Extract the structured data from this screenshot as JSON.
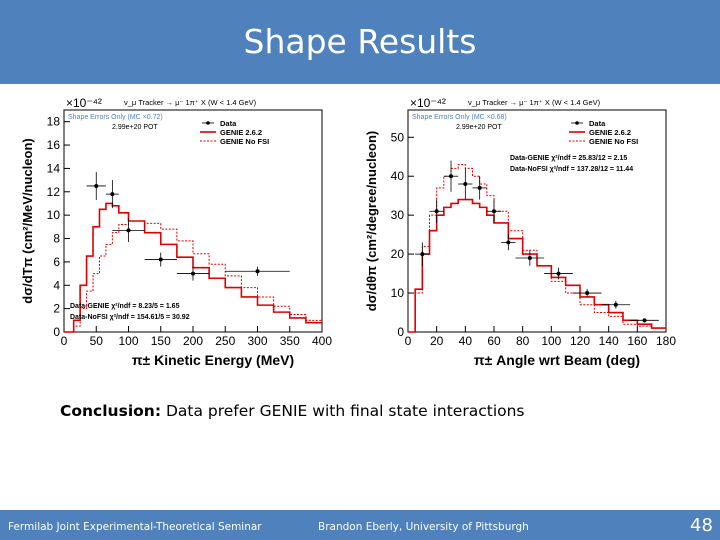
{
  "slide": {
    "title": "Shape Results",
    "conclusion_label": "Conclusion:",
    "conclusion_text": "Data prefer GENIE with final state interactions",
    "footer_left": "Fermilab Joint Experimental-Theoretical Seminar",
    "footer_center": "Brandon Eberly, University of Pittsburgh",
    "page_number": "48"
  },
  "colors": {
    "accent": "#4f81bd",
    "genie": "#e00000",
    "data": "#000000"
  },
  "chart_data": [
    {
      "type": "line",
      "title": "ν_μ Tracker → μ⁻ 1π⁺ X (W < 1.4 GeV)",
      "shape_note": "Shape Errors Only (MC ×0.72)",
      "pot": "2.99e+20 POT",
      "multiplier": "×10⁻⁴²",
      "xlabel": "π± Kinetic Energy (MeV)",
      "ylabel": "dσ/dTπ (cm²/MeV/nucleon)",
      "xlim": [
        0,
        400
      ],
      "ylim": [
        0,
        19
      ],
      "xticks": [
        "0",
        "50",
        "100",
        "150",
        "200",
        "250",
        "300",
        "350",
        "400"
      ],
      "yticks": [
        "0",
        "2",
        "4",
        "6",
        "8",
        "10",
        "12",
        "14",
        "16",
        "18"
      ],
      "legend": [
        "Data",
        "GENIE 2.6.2",
        "GENIE No FSI"
      ],
      "chi2": [
        "Data-GENIE  χ²/ndf = 8.23/5 = 1.65",
        "Data-NoFSI  χ²/ndf = 154.61/5 = 30.92"
      ],
      "data": {
        "x": [
          50,
          75,
          100,
          150,
          200,
          300
        ],
        "y": [
          12.5,
          11.8,
          8.7,
          6.2,
          5.0,
          5.2
        ],
        "xerr": [
          15,
          10,
          25,
          25,
          25,
          50
        ],
        "yerr": [
          1.2,
          1.2,
          1.0,
          0.6,
          0.6,
          0.4
        ]
      },
      "series": [
        {
          "name": "GENIE 2.6.2",
          "x": [
            0,
            15,
            25,
            35,
            45,
            55,
            65,
            75,
            85,
            100,
            125,
            150,
            175,
            200,
            225,
            250,
            275,
            300,
            325,
            350,
            375,
            400
          ],
          "y": [
            0,
            1.0,
            4.0,
            6.5,
            9.0,
            10.5,
            11.0,
            10.8,
            10.2,
            9.5,
            8.5,
            7.5,
            6.4,
            5.5,
            4.6,
            3.8,
            3.0,
            2.3,
            1.7,
            1.2,
            0.8,
            0.5
          ]
        },
        {
          "name": "GENIE No FSI",
          "x": [
            0,
            15,
            25,
            35,
            45,
            55,
            65,
            75,
            85,
            100,
            125,
            150,
            175,
            200,
            225,
            250,
            275,
            300,
            325,
            350,
            375,
            400
          ],
          "y": [
            0,
            0.5,
            2.0,
            3.5,
            5.0,
            6.5,
            7.5,
            8.5,
            9.2,
            9.5,
            9.3,
            8.8,
            7.8,
            6.7,
            5.8,
            4.8,
            3.8,
            3.0,
            2.2,
            1.5,
            1.0,
            0.6
          ]
        }
      ]
    },
    {
      "type": "line",
      "title": "ν_μ Tracker → μ⁻ 1π⁺ X (W < 1.4 GeV)",
      "shape_note": "Shape Errors Only (MC ×0.68)",
      "pot": "2.99e+20 POT",
      "multiplier": "×10⁻⁴²",
      "xlabel": "π± Angle wrt Beam (deg)",
      "ylabel": "dσ/dθπ (cm²/degree/nucleon)",
      "xlim": [
        0,
        180
      ],
      "ylim": [
        0,
        57
      ],
      "xticks": [
        "0",
        "20",
        "40",
        "60",
        "80",
        "100",
        "120",
        "140",
        "160",
        "180"
      ],
      "yticks": [
        "0",
        "10",
        "20",
        "30",
        "40",
        "50"
      ],
      "legend": [
        "Data",
        "GENIE 2.6.2",
        "GENIE No FSI"
      ],
      "chi2": [
        "Data-GENIE  χ²/ndf = 25.83/12 = 2.15",
        "Data-NoFSI  χ²/ndf = 137.28/12 = 11.44"
      ],
      "data": {
        "x": [
          10,
          20,
          30,
          40,
          50,
          60,
          70,
          85,
          105,
          125,
          145,
          165
        ],
        "y": [
          20,
          31,
          40,
          38,
          37,
          31,
          23,
          19,
          15,
          10,
          7,
          3
        ],
        "xerr": [
          5,
          5,
          5,
          5,
          5,
          5,
          5,
          10,
          10,
          10,
          10,
          10
        ],
        "yerr": [
          3,
          3,
          4,
          4,
          3,
          3,
          2,
          2,
          1.5,
          1,
          1,
          0.5
        ]
      },
      "series": [
        {
          "name": "GENIE 2.6.2",
          "x": [
            0,
            5,
            10,
            15,
            20,
            25,
            30,
            35,
            40,
            45,
            50,
            55,
            60,
            70,
            80,
            90,
            100,
            110,
            120,
            130,
            140,
            150,
            160,
            170,
            180
          ],
          "y": [
            0,
            11,
            20,
            26,
            30,
            32,
            33,
            34,
            34,
            33,
            32,
            30,
            28,
            24,
            20,
            17,
            14,
            12,
            9,
            7,
            5,
            3,
            2,
            1,
            0
          ]
        },
        {
          "name": "GENIE No FSI",
          "x": [
            0,
            5,
            10,
            15,
            20,
            25,
            30,
            35,
            40,
            45,
            50,
            55,
            60,
            70,
            80,
            90,
            100,
            110,
            120,
            130,
            140,
            150,
            160,
            170,
            180
          ],
          "y": [
            0,
            10,
            22,
            30,
            37,
            40,
            42,
            43,
            42,
            40,
            38,
            35,
            31,
            26,
            21,
            17,
            13,
            10,
            7,
            5,
            4,
            2,
            1.5,
            1,
            0
          ]
        }
      ]
    }
  ]
}
